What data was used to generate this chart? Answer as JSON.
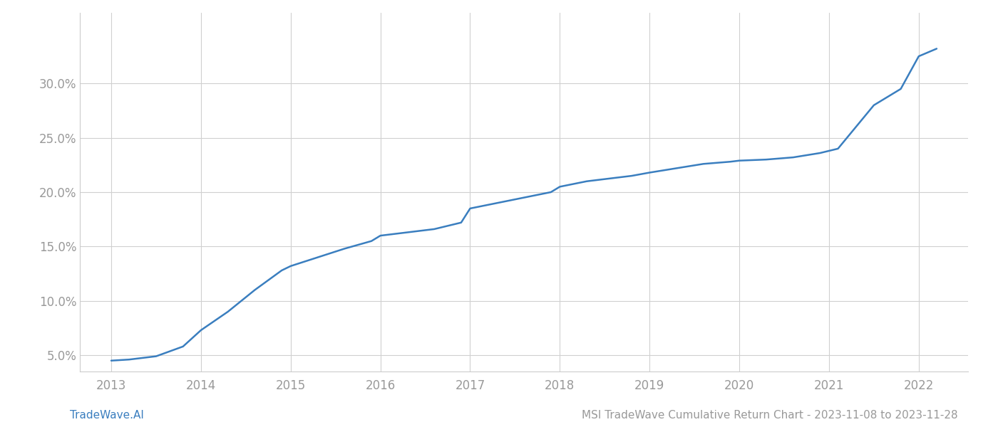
{
  "x_years": [
    2013.0,
    2013.2,
    2013.5,
    2013.8,
    2014.0,
    2014.3,
    2014.6,
    2014.9,
    2015.0,
    2015.3,
    2015.6,
    2015.9,
    2016.0,
    2016.3,
    2016.6,
    2016.9,
    2017.0,
    2017.3,
    2017.6,
    2017.9,
    2018.0,
    2018.3,
    2018.5,
    2018.8,
    2019.0,
    2019.3,
    2019.6,
    2019.9,
    2020.0,
    2020.3,
    2020.6,
    2020.9,
    2021.0,
    2021.1,
    2021.5,
    2021.8,
    2022.0,
    2022.2
  ],
  "y_values": [
    4.5,
    4.6,
    4.9,
    5.8,
    7.3,
    9.0,
    11.0,
    12.8,
    13.2,
    14.0,
    14.8,
    15.5,
    16.0,
    16.3,
    16.6,
    17.2,
    18.5,
    19.0,
    19.5,
    20.0,
    20.5,
    21.0,
    21.2,
    21.5,
    21.8,
    22.2,
    22.6,
    22.8,
    22.9,
    23.0,
    23.2,
    23.6,
    23.8,
    24.0,
    28.0,
    29.5,
    32.5,
    33.2
  ],
  "line_color": "#3a7ebf",
  "line_width": 1.8,
  "background_color": "#ffffff",
  "grid_color": "#d0d0d0",
  "x_ticks": [
    2013,
    2014,
    2015,
    2016,
    2017,
    2018,
    2019,
    2020,
    2021,
    2022
  ],
  "y_ticks": [
    5.0,
    10.0,
    15.0,
    20.0,
    25.0,
    30.0
  ],
  "xlim": [
    2012.65,
    2022.55
  ],
  "ylim": [
    3.5,
    36.5
  ],
  "footer_left": "TradeWave.AI",
  "footer_right": "MSI TradeWave Cumulative Return Chart - 2023-11-08 to 2023-11-28",
  "tick_label_color": "#999999",
  "tick_fontsize": 12,
  "footer_fontsize": 11,
  "footer_left_color": "#3a7ebf",
  "footer_right_color": "#999999",
  "spine_color": "#cccccc"
}
